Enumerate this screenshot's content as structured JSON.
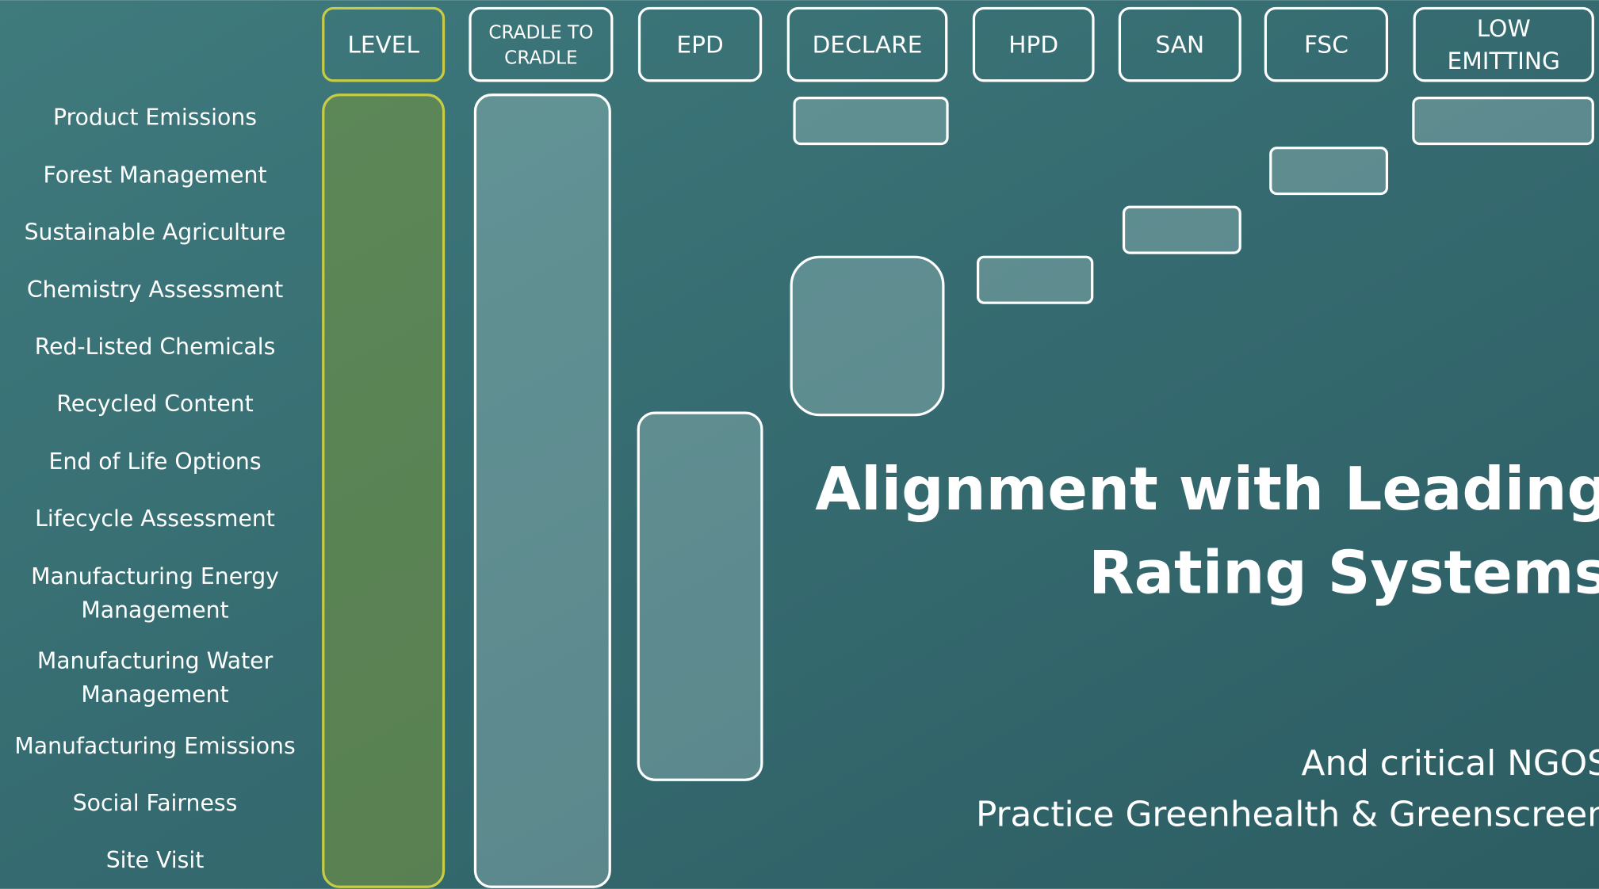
{
  "rows": [
    [
      "Product Emissions"
    ],
    [
      "Forest Management"
    ],
    [
      "Sustainable Agriculture"
    ],
    [
      "Chemistry Assessment"
    ],
    [
      "Red-Listed Chemicals"
    ],
    [
      "Recycled Content"
    ],
    [
      "End of Life Options"
    ],
    [
      "Lifecycle Assessment"
    ],
    [
      "Manufacturing Energy",
      "Management"
    ],
    [
      "Manufacturing Water",
      "Management"
    ],
    [
      "Manufacturing Emissions"
    ],
    [
      "Social Fairness"
    ],
    [
      "Site Visit"
    ]
  ],
  "headers": [
    [
      "LEVEL"
    ],
    [
      "CRADLE TO",
      "CRADLE"
    ],
    [
      "EPD"
    ],
    [
      "DECLARE"
    ],
    [
      "HPD"
    ],
    [
      "SAN"
    ],
    [
      "FSC"
    ],
    [
      "LOW",
      "EMITTING"
    ]
  ],
  "title": [
    "Alignment with Leading",
    "Rating Systems"
  ],
  "subtitle": [
    "And critical NGOS",
    "Practice Greenhealth  & Greenscreen"
  ]
}
